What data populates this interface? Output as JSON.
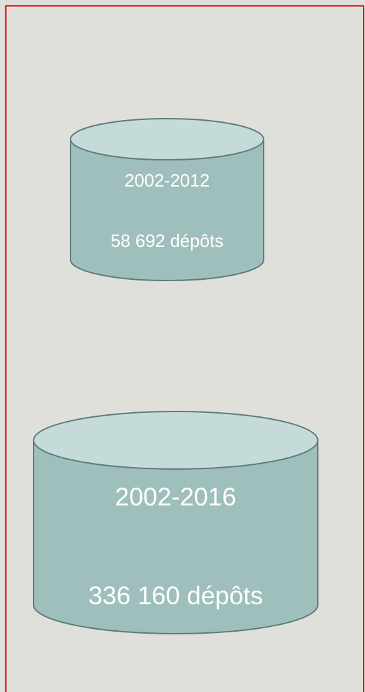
{
  "cylinders": [
    {
      "period": "2002-2012",
      "count": "58 692 dépôts"
    },
    {
      "period": "2002-2016",
      "count": "336 160 dépôts"
    }
  ]
}
